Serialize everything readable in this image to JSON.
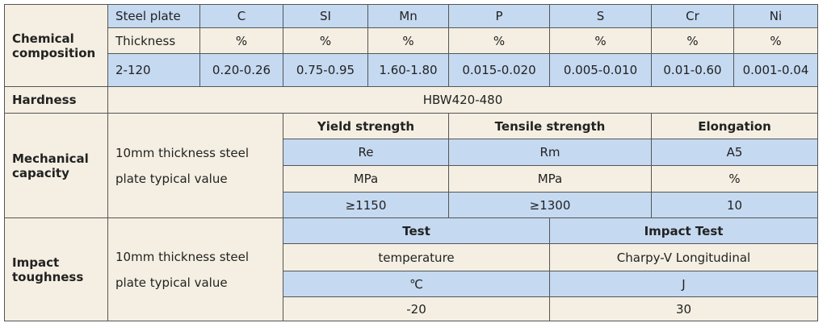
{
  "chemical_composition": {
    "label": "Chemical composition",
    "rows": [
      [
        "Steel plate",
        "C",
        "SI",
        "Mn",
        "P",
        "S",
        "Cr",
        "Ni"
      ],
      [
        "Thickness",
        "%",
        "%",
        "%",
        "%",
        "%",
        "%",
        "%"
      ],
      [
        "2-120",
        "0.20-0.26",
        "0.75-0.95",
        "1.60-1.80",
        "0.015-0.020",
        "0.005-0.010",
        "0.01-0.60",
        "0.001-0.04"
      ]
    ]
  },
  "hardness": {
    "label": "Hardness",
    "value": "HBW420-480"
  },
  "mechanical_capacity": {
    "label": "Mechanical capacity",
    "description": "10mm thickness steel plate typical value",
    "rows": [
      [
        "Yield strength",
        "Tensile strength",
        "Elongation"
      ],
      [
        "Re",
        "Rm",
        "A5"
      ],
      [
        "MPa",
        "MPa",
        "%"
      ],
      [
        "≥1150",
        "≥1300",
        "10"
      ]
    ]
  },
  "impact_toughness": {
    "label": "Impact toughness",
    "description": "10mm thickness steel plate typical value",
    "rows": [
      [
        "Test",
        "Impact Test"
      ],
      [
        "temperature",
        "Charpy-V Longitudinal"
      ],
      [
        "℃",
        "J"
      ],
      [
        "-20",
        "30"
      ]
    ]
  }
}
